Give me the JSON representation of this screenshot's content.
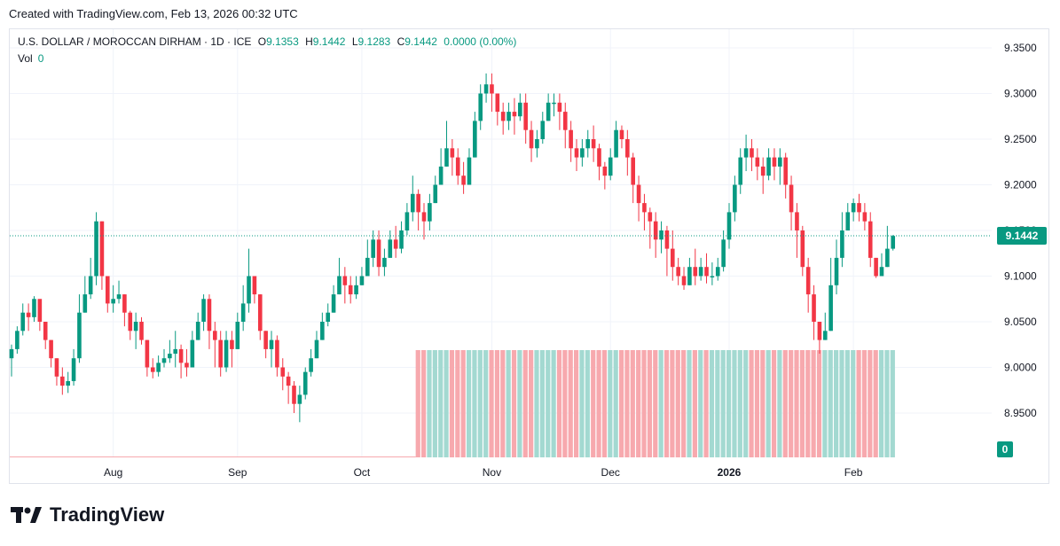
{
  "header": {
    "created_text": "Created with TradingView.com, Feb 13, 2026 00:32 UTC"
  },
  "legend": {
    "symbol": "U.S. DOLLAR / MOROCCAN DIRHAM · 1D · ICE",
    "o_label": "O",
    "o_value": "9.1353",
    "h_label": "H",
    "h_value": "9.1442",
    "l_label": "L",
    "l_value": "9.1283",
    "c_label": "C",
    "c_value": "9.1442",
    "change": "0.0000 (0.00%)",
    "vol_label": "Vol",
    "vol_value": "0"
  },
  "brand": {
    "name": "TradingView"
  },
  "colors": {
    "up": "#089981",
    "down": "#f23645",
    "vol_up": "#a3d9d1",
    "vol_down": "#f7a9ae",
    "grid": "#f0f3fa"
  },
  "chart_data": {
    "type": "candlestick",
    "title": "U.S. DOLLAR / MOROCCAN DIRHAM · 1D · ICE",
    "ylim": [
      8.91,
      9.36
    ],
    "y_ticks": [
      "9.3500",
      "9.3000",
      "9.2500",
      "9.2000",
      "9.1500",
      "9.1000",
      "9.0500",
      "9.0000",
      "8.9500"
    ],
    "x_ticks": [
      {
        "label": "Aug",
        "index": 18
      },
      {
        "label": "Sep",
        "index": 40
      },
      {
        "label": "Oct",
        "index": 62
      },
      {
        "label": "Nov",
        "index": 85
      },
      {
        "label": "Dec",
        "index": 106
      },
      {
        "label": "2026",
        "index": 127,
        "bold": true
      },
      {
        "label": "Feb",
        "index": 149
      }
    ],
    "last_price": "9.1442",
    "last_volume": "0",
    "volume_start_index": 72,
    "volume_last_red_index": 164,
    "closes": [
      9.02,
      9.04,
      9.06,
      9.055,
      9.075,
      9.05,
      9.03,
      9.01,
      8.99,
      8.98,
      8.985,
      9.01,
      9.06,
      9.08,
      9.1,
      9.16,
      9.1,
      9.07,
      9.075,
      9.08,
      9.06,
      9.04,
      9.05,
      9.03,
      9.0,
      8.995,
      9.005,
      9.01,
      9.015,
      9.02,
      9.005,
      9.0,
      9.03,
      9.05,
      9.075,
      9.04,
      9.03,
      9.0,
      9.03,
      9.02,
      9.05,
      9.07,
      9.1,
      9.08,
      9.04,
      9.02,
      9.03,
      9.0,
      8.99,
      8.98,
      8.96,
      8.97,
      8.995,
      9.01,
      9.03,
      9.05,
      9.06,
      9.08,
      9.1,
      9.09,
      9.08,
      9.09,
      9.1,
      9.12,
      9.14,
      9.11,
      9.12,
      9.14,
      9.13,
      9.15,
      9.17,
      9.19,
      9.17,
      9.16,
      9.18,
      9.2,
      9.22,
      9.24,
      9.23,
      9.21,
      9.2,
      9.23,
      9.27,
      9.3,
      9.31,
      9.3,
      9.28,
      9.27,
      9.28,
      9.275,
      9.29,
      9.26,
      9.24,
      9.25,
      9.27,
      9.29,
      9.29,
      9.28,
      9.26,
      9.24,
      9.23,
      9.24,
      9.25,
      9.24,
      9.22,
      9.21,
      9.23,
      9.26,
      9.25,
      9.23,
      9.2,
      9.18,
      9.17,
      9.16,
      9.14,
      9.15,
      9.13,
      9.11,
      9.1,
      9.09,
      9.11,
      9.1,
      9.11,
      9.1,
      9.1,
      9.11,
      9.14,
      9.17,
      9.2,
      9.23,
      9.24,
      9.23,
      9.22,
      9.21,
      9.23,
      9.22,
      9.23,
      9.2,
      9.17,
      9.15,
      9.11,
      9.08,
      9.05,
      9.03,
      9.04,
      9.09,
      9.12,
      9.15,
      9.17,
      9.18,
      9.17,
      9.16,
      9.12,
      9.1,
      9.11,
      9.13,
      9.144
    ],
    "highs": [
      9.025,
      9.045,
      9.07,
      9.07,
      9.078,
      9.058,
      9.04,
      9.03,
      9.01,
      9.0,
      8.995,
      9.02,
      9.08,
      9.1,
      9.12,
      9.17,
      9.16,
      9.09,
      9.09,
      9.095,
      9.08,
      9.062,
      9.06,
      9.055,
      9.03,
      9.01,
      9.013,
      9.02,
      9.03,
      9.04,
      9.025,
      9.02,
      9.04,
      9.06,
      9.08,
      9.08,
      9.05,
      9.04,
      9.04,
      9.04,
      9.06,
      9.09,
      9.13,
      9.1,
      9.08,
      9.04,
      9.04,
      9.035,
      9.01,
      8.995,
      8.985,
      8.98,
      9.0,
      9.02,
      9.04,
      9.06,
      9.07,
      9.09,
      9.12,
      9.11,
      9.1,
      9.1,
      9.11,
      9.14,
      9.15,
      9.15,
      9.13,
      9.15,
      9.155,
      9.16,
      9.18,
      9.21,
      9.195,
      9.18,
      9.19,
      9.21,
      9.24,
      9.27,
      9.25,
      9.24,
      9.225,
      9.24,
      9.28,
      9.31,
      9.322,
      9.322,
      9.3,
      9.29,
      9.29,
      9.295,
      9.3,
      9.3,
      9.27,
      9.26,
      9.28,
      9.3,
      9.3,
      9.3,
      9.29,
      9.27,
      9.25,
      9.25,
      9.26,
      9.265,
      9.245,
      9.225,
      9.24,
      9.27,
      9.265,
      9.26,
      9.235,
      9.21,
      9.19,
      9.175,
      9.17,
      9.16,
      9.155,
      9.15,
      9.12,
      9.11,
      9.12,
      9.13,
      9.12,
      9.125,
      9.115,
      9.12,
      9.15,
      9.18,
      9.21,
      9.24,
      9.255,
      9.25,
      9.24,
      9.23,
      9.24,
      9.24,
      9.24,
      9.235,
      9.21,
      9.18,
      9.155,
      9.12,
      9.09,
      9.05,
      9.06,
      9.12,
      9.14,
      9.17,
      9.18,
      9.185,
      9.19,
      9.18,
      9.17,
      9.12,
      9.125,
      9.155,
      9.145
    ],
    "lows": [
      8.99,
      9.015,
      9.035,
      9.04,
      9.05,
      9.04,
      9.02,
      9.0,
      8.98,
      8.97,
      8.972,
      8.98,
      9.005,
      9.06,
      9.075,
      9.09,
      9.085,
      9.06,
      9.06,
      9.07,
      9.045,
      9.03,
      9.02,
      9.025,
      8.99,
      8.988,
      8.99,
      9.0,
      9.005,
      9.0,
      8.988,
      8.99,
      9.0,
      9.03,
      9.04,
      9.02,
      9.0,
      8.99,
      8.995,
      9.0,
      9.02,
      9.04,
      9.06,
      9.07,
      9.03,
      9.01,
      9.0,
      8.99,
      8.975,
      8.96,
      8.95,
      8.94,
      8.965,
      8.99,
      9.01,
      9.03,
      9.045,
      9.06,
      9.08,
      9.07,
      9.07,
      9.075,
      9.09,
      9.1,
      9.11,
      9.1,
      9.1,
      9.12,
      9.12,
      9.125,
      9.145,
      9.16,
      9.15,
      9.14,
      9.15,
      9.18,
      9.2,
      9.22,
      9.21,
      9.2,
      9.19,
      9.2,
      9.23,
      9.26,
      9.29,
      9.28,
      9.265,
      9.255,
      9.26,
      9.255,
      9.27,
      9.245,
      9.225,
      9.23,
      9.245,
      9.27,
      9.275,
      9.26,
      9.24,
      9.225,
      9.215,
      9.22,
      9.23,
      9.225,
      9.205,
      9.195,
      9.205,
      9.23,
      9.24,
      9.21,
      9.18,
      9.16,
      9.15,
      9.13,
      9.12,
      9.125,
      9.1,
      9.095,
      9.09,
      9.085,
      9.09,
      9.09,
      9.095,
      9.092,
      9.09,
      9.095,
      9.105,
      9.13,
      9.16,
      9.19,
      9.215,
      9.215,
      9.205,
      9.19,
      9.205,
      9.205,
      9.2,
      9.185,
      9.15,
      9.12,
      9.1,
      9.06,
      9.03,
      9.015,
      9.03,
      9.04,
      9.08,
      9.11,
      9.15,
      9.16,
      9.16,
      9.15,
      9.11,
      9.098,
      9.1,
      9.11,
      9.128
    ]
  }
}
